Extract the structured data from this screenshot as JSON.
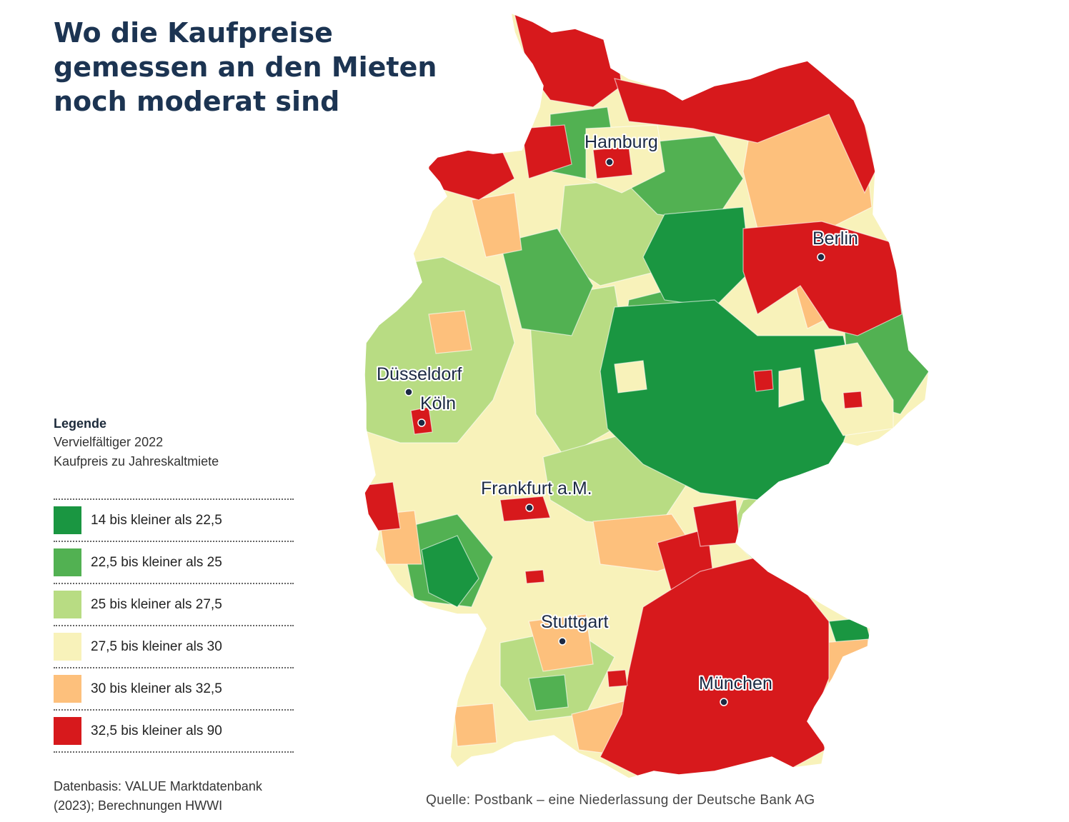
{
  "title": {
    "line1": "Wo die Kaufpreise",
    "line2": "gemessen an den Mieten",
    "line3": "noch moderat sind"
  },
  "legend": {
    "heading": "Legende",
    "subtitle1": "Vervielfältiger 2022",
    "subtitle2": "Kaufpreis zu Jahreskaltmiete",
    "items": [
      {
        "label": "14 bis kleiner als 22,5",
        "color": "#1a9641"
      },
      {
        "label": "22,5 bis kleiner als 25",
        "color": "#52b152"
      },
      {
        "label": "25 bis kleiner als 27,5",
        "color": "#b8dc83"
      },
      {
        "label": "27,5 bis kleiner als 30",
        "color": "#f8f2ba"
      },
      {
        "label": "30 bis kleiner als 32,5",
        "color": "#fdc07c"
      },
      {
        "label": "32,5 bis kleiner als 90",
        "color": "#d7191c"
      }
    ]
  },
  "data_note": {
    "line1": "Datenbasis: VALUE Marktdatenbank",
    "line2": "(2023); Berechnungen HWWI"
  },
  "source": "Quelle: Postbank – eine Niederlassung der Deutsche Bank AG",
  "cities": [
    {
      "name": "Hamburg"
    },
    {
      "name": "Berlin"
    },
    {
      "name": "Düsseldorf"
    },
    {
      "name": "Köln"
    },
    {
      "name": "Frankfurt a.M."
    },
    {
      "name": "Stuttgart"
    },
    {
      "name": "München"
    }
  ]
}
